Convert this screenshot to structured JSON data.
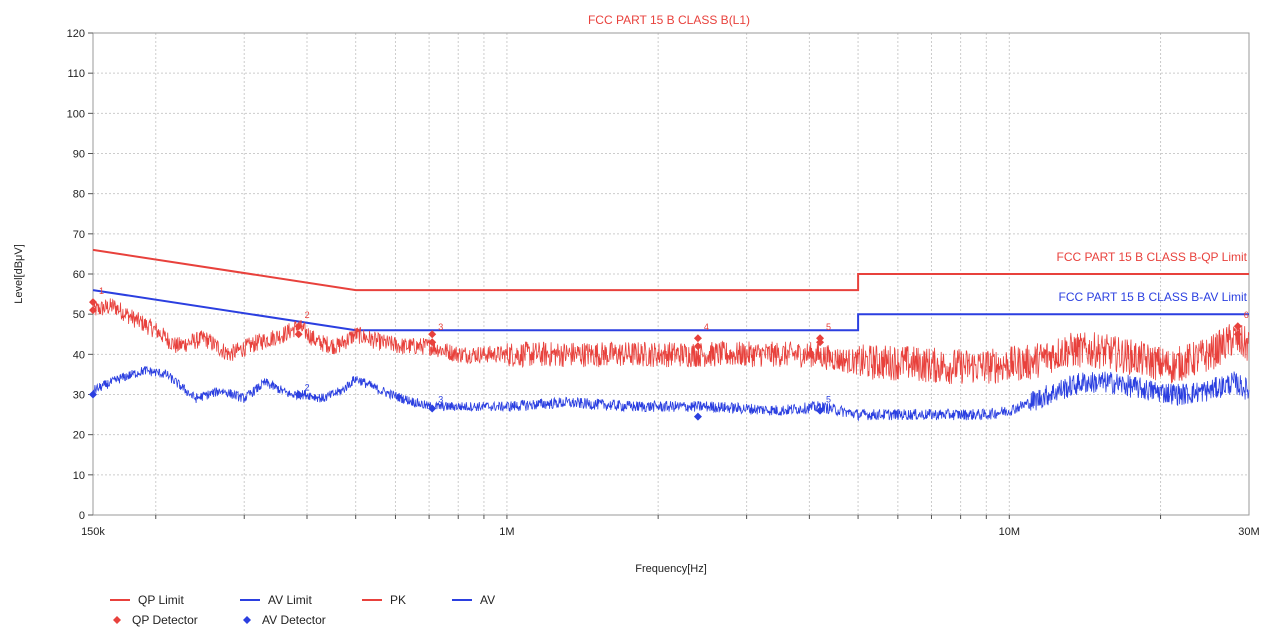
{
  "chart_data": {
    "type": "line",
    "title": "FCC PART 15 B CLASS B(L1)",
    "xlabel": "Frequency[Hz]",
    "ylabel": "Level[dBμV]",
    "x_scale": "log",
    "xlim": [
      150000,
      30000000
    ],
    "ylim": [
      0,
      120
    ],
    "grid": true,
    "x_tick_labels": [
      {
        "value": 150000,
        "label": "150k"
      },
      {
        "value": 1000000,
        "label": "1M"
      },
      {
        "value": 10000000,
        "label": "10M"
      },
      {
        "value": 30000000,
        "label": "30M"
      }
    ],
    "y_ticks": [
      0,
      10,
      20,
      30,
      40,
      50,
      60,
      70,
      80,
      90,
      100,
      110,
      120
    ],
    "colors": {
      "red": "#e8413c",
      "blue": "#2b3fe0"
    },
    "limit_labels": [
      {
        "text": "FCC PART 15 B CLASS B-QP Limit",
        "color": "#e8413c"
      },
      {
        "text": "FCC PART 15 B CLASS B-AV Limit",
        "color": "#2b3fe0"
      }
    ],
    "series": [
      {
        "name": "QP Limit",
        "color": "#e8413c",
        "style": "line",
        "points": [
          [
            150000,
            66
          ],
          [
            500000,
            56
          ],
          [
            5000000,
            56
          ],
          [
            5000000,
            60
          ],
          [
            30000000,
            60
          ]
        ]
      },
      {
        "name": "AV Limit",
        "color": "#2b3fe0",
        "style": "line",
        "points": [
          [
            150000,
            56
          ],
          [
            500000,
            46
          ],
          [
            5000000,
            46
          ],
          [
            5000000,
            50
          ],
          [
            30000000,
            50
          ]
        ]
      },
      {
        "name": "PK",
        "color": "#e8413c",
        "style": "trace",
        "points": [
          [
            150000,
            51
          ],
          [
            165000,
            52
          ],
          [
            180000,
            49
          ],
          [
            200000,
            46
          ],
          [
            220000,
            42
          ],
          [
            250000,
            44
          ],
          [
            280000,
            40
          ],
          [
            320000,
            43
          ],
          [
            360000,
            45
          ],
          [
            385000,
            47
          ],
          [
            420000,
            43
          ],
          [
            460000,
            42
          ],
          [
            500000,
            45
          ],
          [
            560000,
            43
          ],
          [
            620000,
            42
          ],
          [
            700000,
            42
          ],
          [
            800000,
            40
          ],
          [
            1000000,
            40
          ],
          [
            1300000,
            40
          ],
          [
            1800000,
            40
          ],
          [
            2500000,
            40
          ],
          [
            3000000,
            40
          ],
          [
            4000000,
            40
          ],
          [
            5000000,
            38
          ],
          [
            6000000,
            38
          ],
          [
            7500000,
            37
          ],
          [
            9000000,
            37
          ],
          [
            11000000,
            38
          ],
          [
            13000000,
            41
          ],
          [
            15000000,
            41
          ],
          [
            18000000,
            39
          ],
          [
            21000000,
            37
          ],
          [
            25000000,
            40
          ],
          [
            28000000,
            44
          ],
          [
            30000000,
            42
          ]
        ]
      },
      {
        "name": "AV",
        "color": "#2b3fe0",
        "style": "trace",
        "points": [
          [
            150000,
            31
          ],
          [
            170000,
            34
          ],
          [
            190000,
            36
          ],
          [
            210000,
            35
          ],
          [
            240000,
            29
          ],
          [
            270000,
            31
          ],
          [
            300000,
            29
          ],
          [
            330000,
            33
          ],
          [
            370000,
            30
          ],
          [
            400000,
            30
          ],
          [
            430000,
            29
          ],
          [
            470000,
            31
          ],
          [
            500000,
            34
          ],
          [
            560000,
            31
          ],
          [
            620000,
            29
          ],
          [
            700000,
            27
          ],
          [
            800000,
            27
          ],
          [
            1000000,
            27
          ],
          [
            1300000,
            28
          ],
          [
            1800000,
            27
          ],
          [
            2500000,
            27
          ],
          [
            3500000,
            26
          ],
          [
            4200000,
            27
          ],
          [
            5000000,
            25
          ],
          [
            6000000,
            25
          ],
          [
            7500000,
            25
          ],
          [
            9000000,
            25
          ],
          [
            10000000,
            26
          ],
          [
            11000000,
            28
          ],
          [
            12500000,
            31
          ],
          [
            14000000,
            33
          ],
          [
            16000000,
            33
          ],
          [
            19000000,
            31
          ],
          [
            22000000,
            30
          ],
          [
            25000000,
            31
          ],
          [
            28000000,
            33
          ],
          [
            30000000,
            31
          ]
        ]
      },
      {
        "name": "QP Detector",
        "color": "#e8413c",
        "style": "marker",
        "points": [
          [
            150000,
            53
          ],
          [
            150000,
            51
          ],
          [
            385000,
            47
          ],
          [
            385000,
            45
          ],
          [
            710000,
            45
          ],
          [
            710000,
            43
          ],
          [
            2400000,
            44
          ],
          [
            2400000,
            42
          ],
          [
            4200000,
            44
          ],
          [
            4200000,
            43
          ],
          [
            28500000,
            47
          ],
          [
            28500000,
            45
          ]
        ]
      },
      {
        "name": "AV Detector",
        "color": "#2b3fe0",
        "style": "marker",
        "points": [
          [
            150000,
            30
          ],
          [
            385000,
            30
          ],
          [
            710000,
            26.5
          ],
          [
            2400000,
            24.5
          ],
          [
            4200000,
            26
          ]
        ]
      }
    ],
    "marker_numbers": [
      {
        "label": "1",
        "x": 150000,
        "y": 55
      },
      {
        "label": "2",
        "x": 385000,
        "y": 49
      },
      {
        "label": "3",
        "x": 710000,
        "y": 46
      },
      {
        "label": "4",
        "x": 2400000,
        "y": 46
      },
      {
        "label": "5",
        "x": 4200000,
        "y": 46
      },
      {
        "label": "6",
        "x": 28500000,
        "y": 49
      },
      {
        "label": "2",
        "x": 385000,
        "y": 31
      },
      {
        "label": "3",
        "x": 710000,
        "y": 28
      },
      {
        "label": "5",
        "x": 4200000,
        "y": 28
      }
    ],
    "legend": {
      "placement": "bottom-left",
      "items": [
        {
          "label": "QP Limit",
          "type": "line",
          "color": "#e8413c"
        },
        {
          "label": "AV Limit",
          "type": "line",
          "color": "#2b3fe0"
        },
        {
          "label": "PK",
          "type": "line",
          "color": "#e8413c"
        },
        {
          "label": "AV",
          "type": "line",
          "color": "#2b3fe0"
        },
        {
          "label": "QP Detector",
          "type": "marker",
          "color": "#e8413c"
        },
        {
          "label": "AV Detector",
          "type": "marker",
          "color": "#2b3fe0"
        }
      ]
    }
  }
}
